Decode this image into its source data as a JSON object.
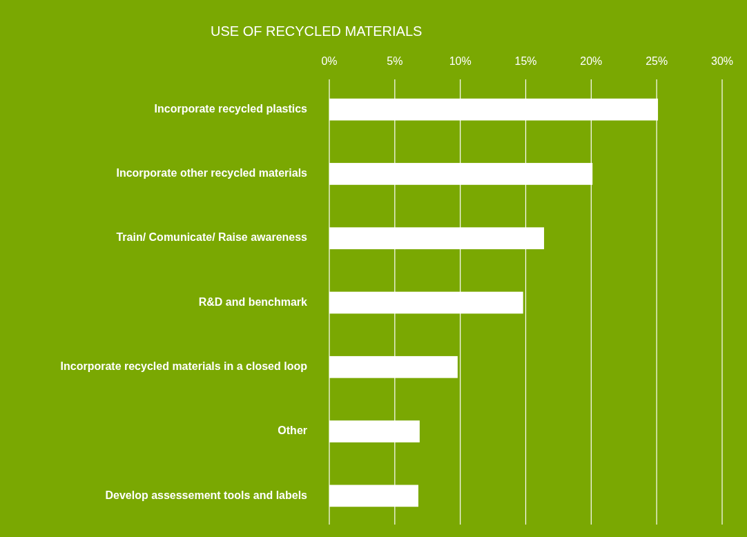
{
  "chart_data": {
    "type": "bar",
    "orientation": "horizontal",
    "title": "USE OF RECYCLED MATERIALS",
    "categories": [
      "Incorporate recycled plastics",
      "Incorporate other recycled materials",
      "Train/ Comunicate/ Raise awareness",
      "R&D and benchmark",
      "Incorporate recycled materials in a closed loop",
      "Other",
      "Develop assessement tools and labels"
    ],
    "values": [
      25.1,
      20.1,
      16.4,
      14.8,
      9.8,
      6.9,
      6.8
    ],
    "color": "#ffffff",
    "xlim": [
      0,
      30
    ],
    "xticks": [
      {
        "value": 0,
        "label": "0%"
      },
      {
        "value": 5,
        "label": "5%"
      },
      {
        "value": 10,
        "label": "10%"
      },
      {
        "value": 15,
        "label": "15%"
      },
      {
        "value": 20,
        "label": "20%"
      },
      {
        "value": 25,
        "label": "25%"
      },
      {
        "value": 30,
        "label": "30%"
      }
    ],
    "grid": "x"
  }
}
